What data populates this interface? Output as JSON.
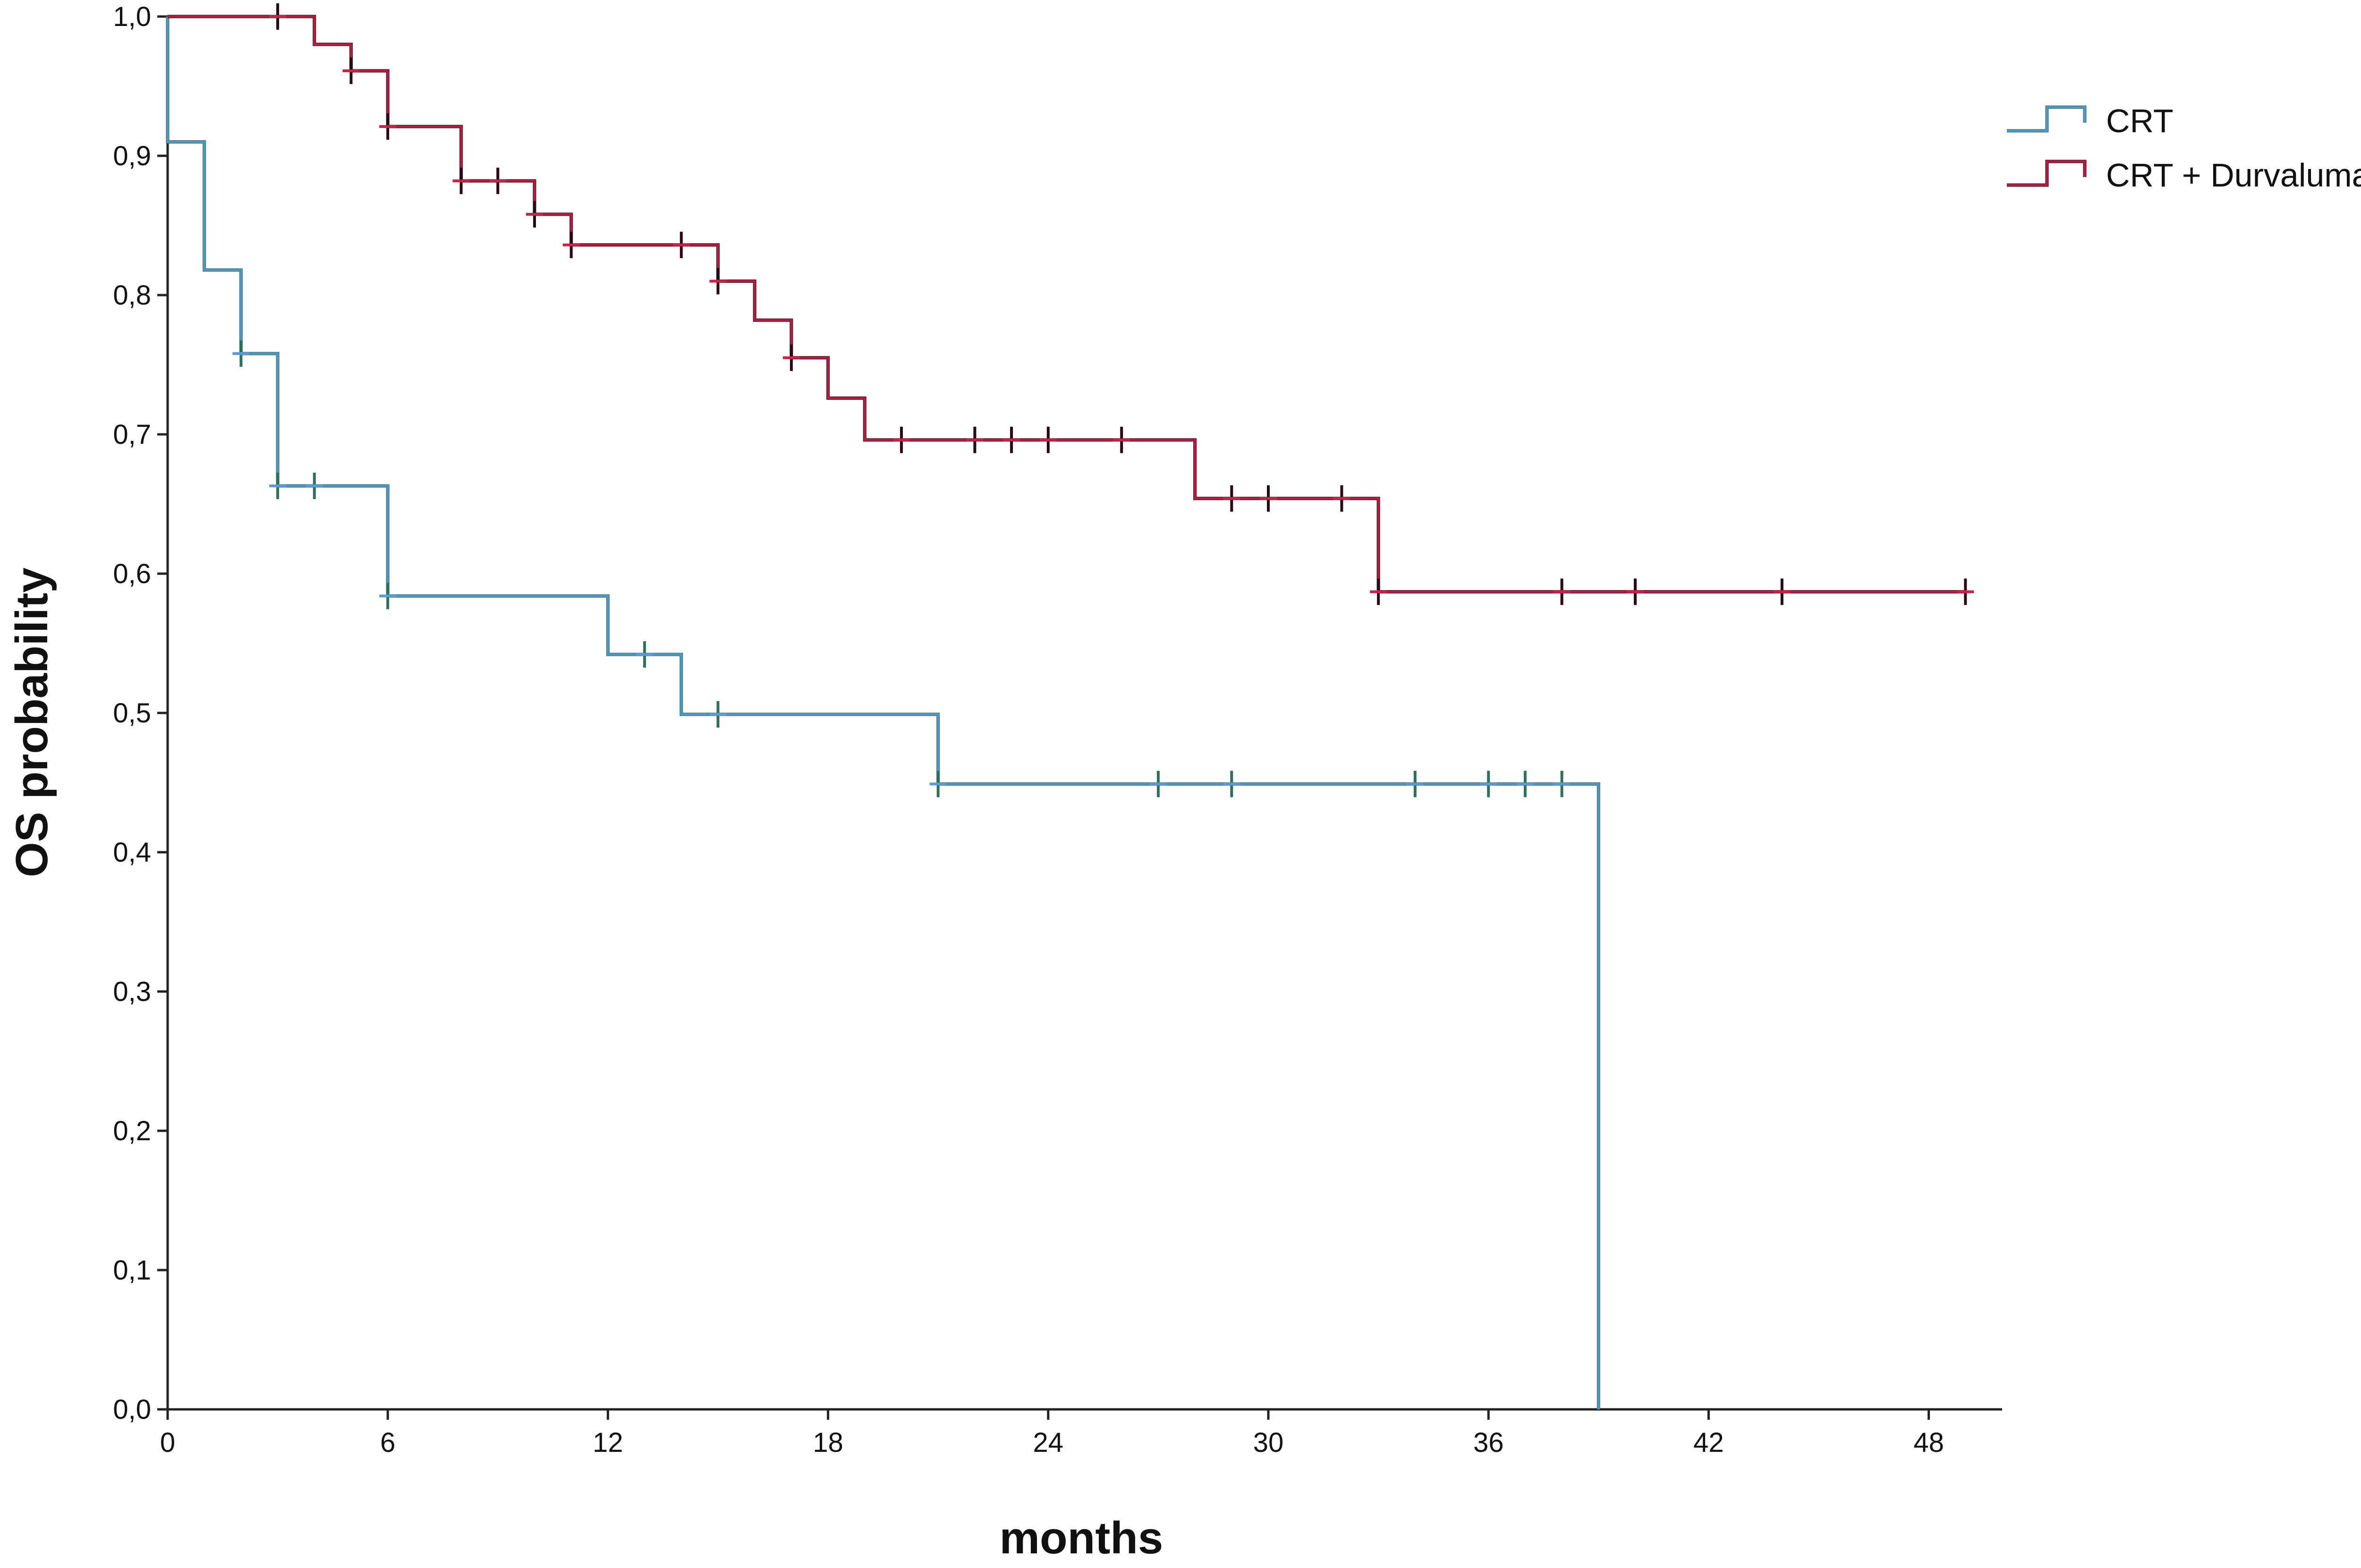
{
  "chart_data": {
    "type": "line",
    "step": true,
    "title": "",
    "xlabel": "months",
    "ylabel": "OS probability",
    "xlim": [
      0,
      50
    ],
    "ylim": [
      0,
      1
    ],
    "x_ticks": [
      0,
      6,
      12,
      18,
      24,
      30,
      36,
      42,
      48
    ],
    "x_tick_labels": [
      "0",
      "6",
      "12",
      "18",
      "24",
      "30",
      "36",
      "42",
      "48"
    ],
    "y_ticks": [
      0,
      0.1,
      0.2,
      0.3,
      0.4,
      0.5,
      0.6,
      0.7,
      0.8,
      0.9,
      1.0
    ],
    "y_tick_labels": [
      "0,0",
      "0,1",
      "0,2",
      "0,3",
      "0,4",
      "0,5",
      "0,6",
      "0,7",
      "0,8",
      "0,9",
      "1,0"
    ],
    "grid": false,
    "legend_position": "top-right",
    "series": [
      {
        "name": "CRT",
        "color": "#5b9bd5",
        "color_secondary": "#2e6f5e",
        "steps": [
          [
            0,
            1.0
          ],
          [
            0,
            0.91
          ],
          [
            1,
            0.818
          ],
          [
            2,
            0.758
          ],
          [
            3,
            0.663
          ],
          [
            6,
            0.584
          ],
          [
            12,
            0.542
          ],
          [
            14,
            0.499
          ],
          [
            21,
            0.449
          ],
          [
            39,
            0.0
          ]
        ],
        "censor": [
          [
            2,
            0.758
          ],
          [
            3,
            0.663
          ],
          [
            4,
            0.663
          ],
          [
            6,
            0.584
          ],
          [
            13,
            0.542
          ],
          [
            15,
            0.499
          ],
          [
            21,
            0.449
          ],
          [
            27,
            0.449
          ],
          [
            29,
            0.449
          ],
          [
            34,
            0.449
          ],
          [
            36,
            0.449
          ],
          [
            37,
            0.449
          ],
          [
            38,
            0.449
          ]
        ]
      },
      {
        "name": "CRT + Durvalumab",
        "color": "#c8224a",
        "color_secondary": "#2a0a10",
        "steps": [
          [
            0,
            1.0
          ],
          [
            4,
            0.98
          ],
          [
            5,
            0.961
          ],
          [
            6,
            0.921
          ],
          [
            8,
            0.882
          ],
          [
            10,
            0.858
          ],
          [
            11,
            0.836
          ],
          [
            15,
            0.81
          ],
          [
            16,
            0.782
          ],
          [
            17,
            0.755
          ],
          [
            18,
            0.726
          ],
          [
            19,
            0.696
          ],
          [
            28,
            0.654
          ],
          [
            33,
            0.587
          ],
          [
            49,
            0.587
          ]
        ],
        "censor": [
          [
            3,
            1.0
          ],
          [
            5,
            0.961
          ],
          [
            6,
            0.921
          ],
          [
            8,
            0.882
          ],
          [
            9,
            0.882
          ],
          [
            10,
            0.858
          ],
          [
            11,
            0.836
          ],
          [
            14,
            0.836
          ],
          [
            15,
            0.81
          ],
          [
            17,
            0.755
          ],
          [
            20,
            0.696
          ],
          [
            22,
            0.696
          ],
          [
            23,
            0.696
          ],
          [
            24,
            0.696
          ],
          [
            26,
            0.696
          ],
          [
            29,
            0.654
          ],
          [
            30,
            0.654
          ],
          [
            32,
            0.654
          ],
          [
            33,
            0.587
          ],
          [
            38,
            0.587
          ],
          [
            40,
            0.587
          ],
          [
            44,
            0.587
          ],
          [
            49,
            0.587
          ]
        ]
      }
    ]
  }
}
